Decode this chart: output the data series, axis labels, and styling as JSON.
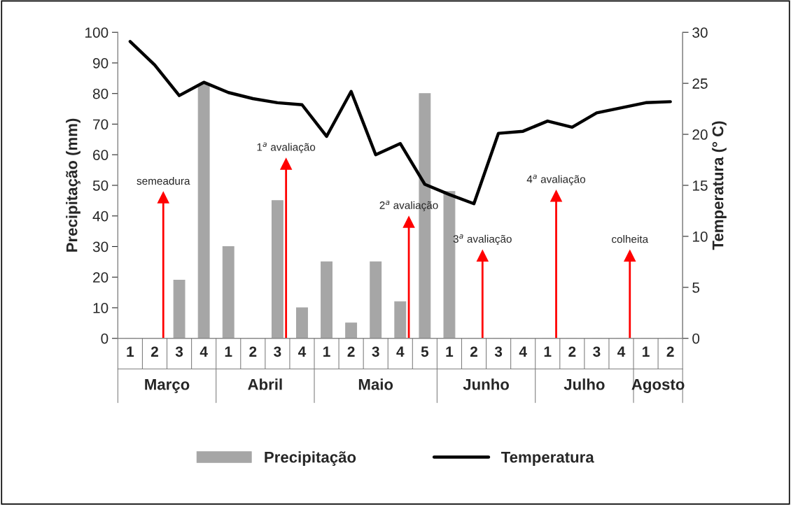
{
  "chart_data": {
    "type": "bar",
    "categories": [
      "1",
      "2",
      "3",
      "4",
      "1",
      "2",
      "3",
      "4",
      "1",
      "2",
      "3",
      "4",
      "5",
      "1",
      "2",
      "3",
      "4",
      "1",
      "2",
      "3",
      "4",
      "1",
      "2"
    ],
    "series": [
      {
        "name": "Precipitação",
        "color": "#a6a6a6",
        "values": [
          0,
          0,
          19,
          83,
          30,
          0,
          45,
          10,
          25,
          5,
          25,
          12,
          80,
          48,
          0,
          0,
          0,
          0,
          0,
          0,
          0,
          0,
          0
        ]
      },
      {
        "name": "Temperatura",
        "type": "line",
        "axis": "y2",
        "color": "#000000",
        "values": [
          29.1,
          26.8,
          23.8,
          25.1,
          24.1,
          23.5,
          23.1,
          22.9,
          19.8,
          24.2,
          18.0,
          19.1,
          15.1,
          14.1,
          13.2,
          20.1,
          20.3,
          21.3,
          20.7,
          22.1,
          22.6,
          23.1,
          23.2
        ]
      },
      {
        "type": "lollipop",
        "color": "#ff0000",
        "marker": "triangle",
        "values": [
          null,
          46,
          null,
          null,
          null,
          null,
          57,
          null,
          null,
          null,
          null,
          38,
          null,
          null,
          27,
          null,
          null,
          46.5,
          null,
          null,
          27,
          null,
          null
        ]
      }
    ],
    "ylabel": "Precipitação (mm)",
    "y2label": "Temperatura (° C)",
    "ylim": [
      0,
      100
    ],
    "yticks": [
      0,
      10,
      20,
      30,
      40,
      50,
      60,
      70,
      80,
      90,
      100
    ],
    "y2lim": [
      0,
      30
    ],
    "y2ticks": [
      0,
      5,
      10,
      15,
      20,
      25,
      30
    ],
    "annotations": [
      "Março",
      "Abril",
      "Maio",
      "Junho",
      "Julho",
      "Agosto",
      "semeadura",
      "1$^{a}$ avaliação",
      "2$^{a}$ avaliação",
      "3$^{a}$ avaliação",
      "4$^{a}$ avaliação",
      "colheita"
    ],
    "grid": false,
    "legend": "bottom"
  }
}
